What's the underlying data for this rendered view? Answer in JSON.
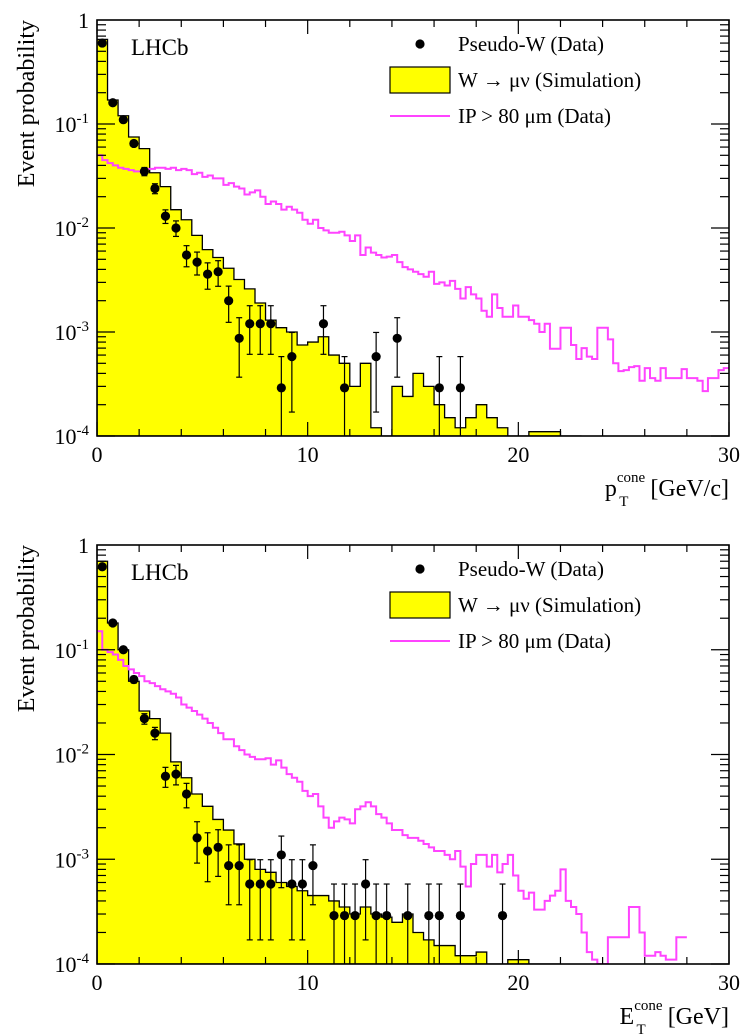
{
  "colors": {
    "mc_fill": "#ffff00",
    "mc_line": "#000000",
    "ip_line": "#ff44ff",
    "data_marker": "#000000"
  },
  "chart_data": [
    {
      "type": "histogram",
      "log_y": true,
      "ylim": [
        0.0001,
        1
      ],
      "xlim": [
        0,
        30
      ],
      "bin_width": 0.5,
      "ylabel": "Event probability",
      "xlabel_main": "p",
      "xlabel_sub": "T",
      "xlabel_sup": "cone",
      "xlabel_rest": "[GeV/c]",
      "experiment_label": "LHCb",
      "x_ticks": [
        "0",
        "10",
        "20",
        "30"
      ],
      "y_ticks": [
        {
          "base": "10",
          "exp": "-4"
        },
        {
          "base": "10",
          "exp": "-3"
        },
        {
          "base": "10",
          "exp": "-2"
        },
        {
          "base": "10",
          "exp": "-1"
        },
        {
          "base": "1",
          "exp": ""
        }
      ],
      "legend_position": "top-right",
      "legend": [
        {
          "symbol": "marker",
          "label": "Pseudo-W (Data)"
        },
        {
          "symbol": "box",
          "label": "W → μν (Simulation)"
        },
        {
          "symbol": "line",
          "label": "IP > 80 μm (Data)"
        }
      ],
      "series": [
        {
          "name": "W → μν (Simulation)",
          "style": "filled-step",
          "values": [
            0.65,
            0.17,
            0.12,
            0.075,
            0.058,
            0.034,
            0.025,
            0.015,
            0.012,
            0.0085,
            0.0062,
            0.0052,
            0.0041,
            0.0032,
            0.0026,
            0.0019,
            0.0013,
            0.0011,
            0.001,
            0.00075,
            0.0008,
            0.0009,
            0.0006,
            0.0005,
            0.0003,
            0.0005,
            0.00012,
            0.0001,
            0.0003,
            0.00024,
            0.0004,
            0.0003,
            0.0002,
            0.00015,
            0.00012,
            0.00015,
            0.0002,
            0.00015,
            0.00012,
            0.0001,
            0.0001,
            0.00011,
            0.00011,
            0.00011,
            0.0001,
            0.0001
          ]
        },
        {
          "name": "IP > 80 μm (Data)",
          "style": "step",
          "values": [
            0.05,
            0.045,
            0.042,
            0.04,
            0.038,
            0.037,
            0.036,
            0.035,
            0.035,
            0.037,
            0.037,
            0.038,
            0.038,
            0.037,
            0.038,
            0.036,
            0.037,
            0.036,
            0.033,
            0.034,
            0.031,
            0.032,
            0.03,
            0.03,
            0.026,
            0.027,
            0.025,
            0.024,
            0.021,
            0.022,
            0.023,
            0.02,
            0.017,
            0.018,
            0.017,
            0.015,
            0.016,
            0.015,
            0.014,
            0.012,
            0.011,
            0.012,
            0.01,
            0.0095,
            0.009,
            0.009,
            0.0092,
            0.0085,
            0.0075,
            0.0085,
            0.0055,
            0.0065,
            0.0058,
            0.0055,
            0.0052,
            0.0053,
            0.0055,
            0.0047,
            0.0042,
            0.004,
            0.0038,
            0.0036,
            0.0034,
            0.0038,
            0.0029,
            0.003,
            0.0028,
            0.0031,
            0.0026,
            0.0021,
            0.0027,
            0.0023,
            0.0021,
            0.0016,
            0.0014,
            0.0023,
            0.0017,
            0.0014,
            0.0014,
            0.0018,
            0.0014,
            0.0014,
            0.0013,
            0.0012,
            0.001,
            0.0012,
            0.00069,
            0.00069,
            0.0011,
            0.0011,
            0.00075,
            0.00055,
            0.0007,
            0.00058,
            0.00055,
            0.0011,
            0.0011,
            0.00085,
            0.0005,
            0.00042,
            0.00043,
            0.00046,
            0.00047,
            0.00034,
            0.00045,
            0.00036,
            0.00034,
            0.00045,
            0.00036,
            0.00036,
            0.00036,
            0.00044,
            0.00036,
            0.00036,
            0.00034,
            0.00027,
            0.00036,
            0.00036,
            0.00043,
            0.00045
          ]
        },
        {
          "name": "Pseudo-W (Data)",
          "style": "points",
          "points": [
            {
              "x": 0.25,
              "y": 0.6
            },
            {
              "x": 0.75,
              "y": 0.16
            },
            {
              "x": 1.25,
              "y": 0.11
            },
            {
              "x": 1.75,
              "y": 0.065
            },
            {
              "x": 2.25,
              "y": 0.035
            },
            {
              "x": 2.75,
              "y": 0.024
            },
            {
              "x": 3.25,
              "y": 0.013
            },
            {
              "x": 3.75,
              "y": 0.01
            },
            {
              "x": 4.25,
              "y": 0.0055
            },
            {
              "x": 4.75,
              "y": 0.0047
            },
            {
              "x": 5.25,
              "y": 0.0036
            },
            {
              "x": 5.75,
              "y": 0.0038
            },
            {
              "x": 6.25,
              "y": 0.002
            },
            {
              "x": 6.75,
              "y": 0.00087
            },
            {
              "x": 7.25,
              "y": 0.0012
            },
            {
              "x": 7.75,
              "y": 0.0012
            },
            {
              "x": 8.25,
              "y": 0.0012
            },
            {
              "x": 8.75,
              "y": 0.00029
            },
            {
              "x": 9.25,
              "y": 0.00058
            },
            {
              "x": 10.75,
              "y": 0.0012
            },
            {
              "x": 11.75,
              "y": 0.00029
            },
            {
              "x": 13.25,
              "y": 0.00058
            },
            {
              "x": 14.25,
              "y": 0.00087
            },
            {
              "x": 16.25,
              "y": 0.00029
            },
            {
              "x": 17.25,
              "y": 0.00029
            }
          ]
        }
      ]
    },
    {
      "type": "histogram",
      "log_y": true,
      "ylim": [
        0.0001,
        1
      ],
      "xlim": [
        0,
        30
      ],
      "bin_width": 0.5,
      "ylabel": "Event probability",
      "xlabel_main": "E",
      "xlabel_sub": "T",
      "xlabel_sup": "cone",
      "xlabel_rest": "[GeV]",
      "experiment_label": "LHCb",
      "x_ticks": [
        "0",
        "10",
        "20",
        "30"
      ],
      "y_ticks": [
        {
          "base": "10",
          "exp": "-4"
        },
        {
          "base": "10",
          "exp": "-3"
        },
        {
          "base": "10",
          "exp": "-2"
        },
        {
          "base": "10",
          "exp": "-1"
        },
        {
          "base": "1",
          "exp": ""
        }
      ],
      "legend_position": "top-right",
      "legend": [
        {
          "symbol": "marker",
          "label": "Pseudo-W (Data)"
        },
        {
          "symbol": "box",
          "label": "W → μν (Simulation)"
        },
        {
          "symbol": "line",
          "label": "IP > 80 μm (Data)"
        }
      ],
      "series": [
        {
          "name": "W → μν (Simulation)",
          "style": "filled-step",
          "values": [
            0.7,
            0.18,
            0.1,
            0.05,
            0.026,
            0.022,
            0.016,
            0.0085,
            0.006,
            0.0042,
            0.0032,
            0.0024,
            0.0019,
            0.0014,
            0.001,
            0.0008,
            0.00075,
            0.0006,
            0.00055,
            0.0005,
            0.00045,
            0.00045,
            0.0004,
            0.00035,
            0.0003,
            0.00035,
            0.0003,
            0.00028,
            0.00025,
            0.0003,
            0.0002,
            0.00017,
            0.00015,
            0.00015,
            0.00012,
            0.00012,
            0.00013,
            0.0001,
            0.0001,
            0.00011,
            0.00011,
            0.0001,
            0.0001,
            0.0001
          ]
        },
        {
          "name": "IP > 80 μm (Data)",
          "style": "step",
          "values": [
            0.15,
            0.1,
            0.095,
            0.09,
            0.08,
            0.07,
            0.065,
            0.06,
            0.056,
            0.05,
            0.048,
            0.045,
            0.042,
            0.04,
            0.038,
            0.035,
            0.03,
            0.028,
            0.026,
            0.024,
            0.022,
            0.02,
            0.018,
            0.016,
            0.014,
            0.014,
            0.012,
            0.011,
            0.01,
            0.0095,
            0.009,
            0.009,
            0.0092,
            0.008,
            0.0088,
            0.0075,
            0.0065,
            0.006,
            0.0055,
            0.0045,
            0.004,
            0.0042,
            0.0032,
            0.0025,
            0.002,
            0.0023,
            0.0025,
            0.0024,
            0.0022,
            0.003,
            0.0032,
            0.0035,
            0.0032,
            0.0027,
            0.0025,
            0.0022,
            0.0019,
            0.0019,
            0.0017,
            0.0016,
            0.0016,
            0.0015,
            0.0014,
            0.0013,
            0.0012,
            0.0012,
            0.0011,
            0.001,
            0.0012,
            0.00085,
            0.00055,
            0.0009,
            0.0011,
            0.0011,
            0.00085,
            0.0011,
            0.00075,
            0.0009,
            0.0011,
            0.0007,
            0.0005,
            0.00042,
            0.00048,
            0.00033,
            0.00033,
            0.0004,
            0.00045,
            0.0005,
            0.0008,
            0.0004,
            0.00035,
            0.0003,
            0.0002,
            0.00013,
            0.00011,
            0.0001,
            0.0001,
            0.00018,
            0.00018,
            0.00018,
            0.00018,
            0.00035,
            0.00035,
            0.0002,
            0.00012,
            0.00012,
            0.00013,
            0.00012,
            0.00011,
            0.00011,
            0.00018,
            0.00018
          ]
        },
        {
          "name": "Pseudo-W (Data)",
          "style": "points",
          "points": [
            {
              "x": 0.25,
              "y": 0.62
            },
            {
              "x": 0.75,
              "y": 0.18
            },
            {
              "x": 1.25,
              "y": 0.1
            },
            {
              "x": 1.75,
              "y": 0.052
            },
            {
              "x": 2.25,
              "y": 0.022
            },
            {
              "x": 2.75,
              "y": 0.016
            },
            {
              "x": 3.25,
              "y": 0.0062
            },
            {
              "x": 3.75,
              "y": 0.0065
            },
            {
              "x": 4.25,
              "y": 0.0042
            },
            {
              "x": 4.75,
              "y": 0.0016
            },
            {
              "x": 5.25,
              "y": 0.0012
            },
            {
              "x": 5.75,
              "y": 0.0013
            },
            {
              "x": 6.25,
              "y": 0.00087
            },
            {
              "x": 6.75,
              "y": 0.00087
            },
            {
              "x": 7.25,
              "y": 0.00058
            },
            {
              "x": 7.75,
              "y": 0.00058
            },
            {
              "x": 8.25,
              "y": 0.00058
            },
            {
              "x": 8.75,
              "y": 0.0011
            },
            {
              "x": 9.25,
              "y": 0.00058
            },
            {
              "x": 9.75,
              "y": 0.00058
            },
            {
              "x": 10.25,
              "y": 0.00087
            },
            {
              "x": 11.25,
              "y": 0.00029
            },
            {
              "x": 11.75,
              "y": 0.00029
            },
            {
              "x": 12.25,
              "y": 0.00029
            },
            {
              "x": 12.75,
              "y": 0.00058
            },
            {
              "x": 13.25,
              "y": 0.00029
            },
            {
              "x": 13.75,
              "y": 0.00029
            },
            {
              "x": 14.75,
              "y": 0.00029
            },
            {
              "x": 15.75,
              "y": 0.00029
            },
            {
              "x": 16.25,
              "y": 0.00029
            },
            {
              "x": 17.25,
              "y": 0.00029
            },
            {
              "x": 19.25,
              "y": 0.00029
            }
          ]
        }
      ]
    }
  ]
}
